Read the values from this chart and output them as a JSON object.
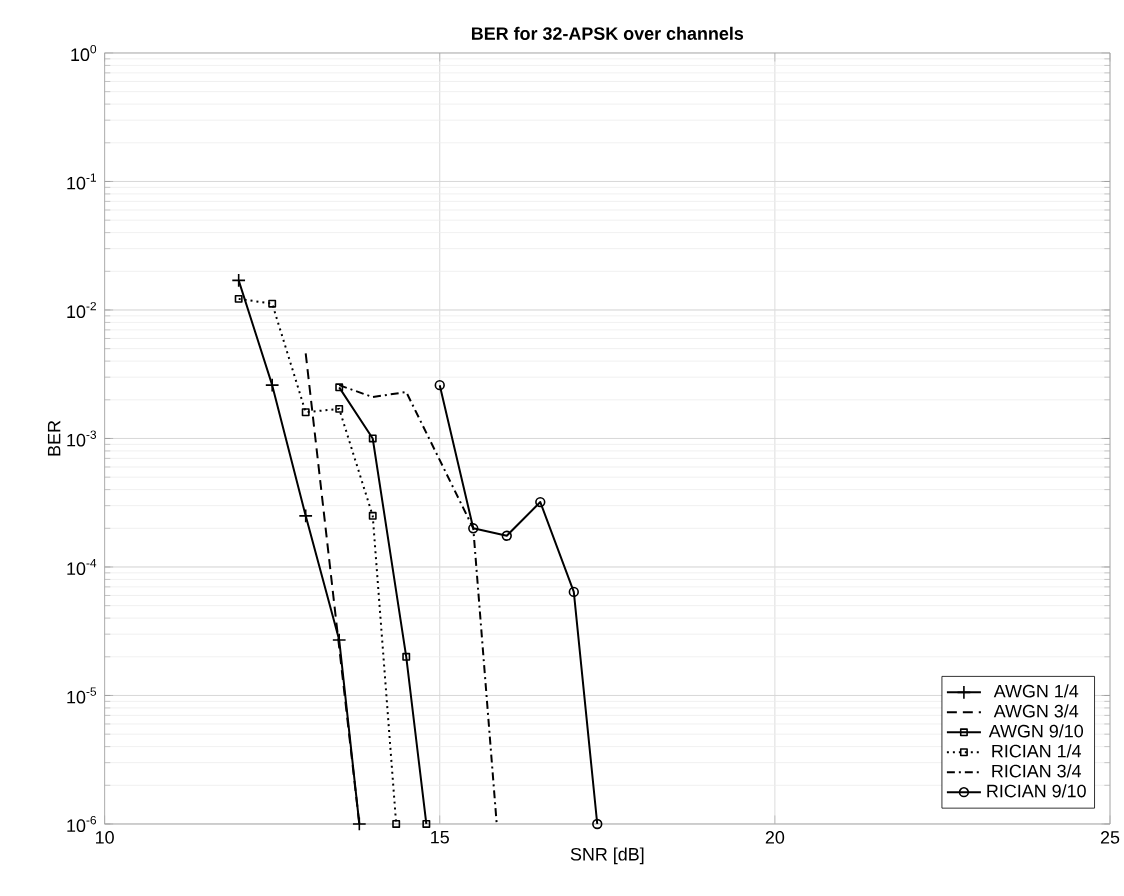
{
  "chart_data": {
    "type": "line",
    "title": "BER for 32-APSK over channels",
    "xlabel": "SNR [dB]",
    "ylabel": "BER",
    "log": "y",
    "grid": true,
    "legend": "bottom right",
    "xlim": [
      10,
      25
    ],
    "xticks": [
      10,
      15,
      20,
      25
    ],
    "ylim": [
      1e-06,
      1
    ],
    "yticks": [
      {
        "value": 1e-06,
        "label": "10$^{-6}$"
      },
      {
        "value": 1e-05,
        "label": "10$^{-5}$"
      },
      {
        "value": 0.0001,
        "label": "10$^{-4}$"
      },
      {
        "value": 0.001,
        "label": "10$^{-3}$"
      },
      {
        "value": 0.01,
        "label": "10$^{-2}$"
      },
      {
        "value": 0.1,
        "label": "10$^{-1}$"
      },
      {
        "value": 1,
        "label": "10$^{0}$"
      }
    ],
    "series": [
      {
        "name": "AWGN 1/4",
        "color": "#000000",
        "marker": "cross",
        "line_style": "solid",
        "x": [
          12,
          12.5,
          13,
          13.5,
          13.8
        ],
        "values": [
          0.017,
          0.0026,
          0.00025,
          2.7e-05,
          1e-06
        ]
      },
      {
        "name": "AWGN 3/4",
        "color": "#000000",
        "marker": "none",
        "line_style": "dashed",
        "x": [
          13,
          13.8
        ],
        "values": [
          0.0046,
          1e-06
        ]
      },
      {
        "name": "AWGN 9/10",
        "color": "#000000",
        "marker": "square",
        "line_style": "solid",
        "x": [
          13.5,
          14,
          14.5,
          14.8
        ],
        "values": [
          0.0025,
          0.001,
          2e-05,
          1e-06
        ]
      },
      {
        "name": "RICIAN 1/4",
        "color": "#000000",
        "marker": "square",
        "line_style": "dotted",
        "x": [
          12,
          12.5,
          13,
          13.5,
          14,
          14.35
        ],
        "values": [
          0.0122,
          0.0112,
          0.0016,
          0.0017,
          0.00025,
          1e-06
        ]
      },
      {
        "name": "RICIAN 3/4",
        "color": "#000000",
        "marker": "none",
        "line_style": "dashdot",
        "x": [
          13.5,
          14,
          14.5,
          15.5,
          15.85
        ],
        "values": [
          0.0026,
          0.0021,
          0.0023,
          0.0002,
          1e-06
        ]
      },
      {
        "name": "RICIAN 9/10",
        "color": "#000000",
        "marker": "circle",
        "line_style": "solid",
        "x": [
          15,
          15.5,
          16,
          16.5,
          17,
          17.35
        ],
        "values": [
          0.0026,
          0.0002,
          0.000175,
          0.00032,
          6.4e-05,
          1e-06
        ]
      }
    ]
  }
}
